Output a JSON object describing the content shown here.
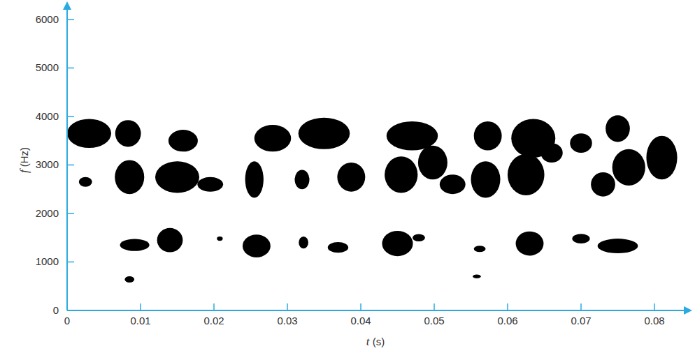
{
  "chart_data": {
    "type": "spectrogram",
    "x_label": "t (s)",
    "y_label": "f (Hz)",
    "color": "#000000",
    "xlim": [
      0,
      0.084
    ],
    "xticks": [
      0,
      0.01,
      0.02,
      0.03,
      0.04,
      0.05,
      0.06,
      0.07,
      0.08
    ],
    "ylim": [
      0,
      6200
    ],
    "yticks": [
      0,
      1000,
      2000,
      3000,
      4000,
      5000,
      6000
    ],
    "blobs": [
      {
        "t": 0.003,
        "f": 3650,
        "dt": 0.006,
        "df": 600
      },
      {
        "t": 0.0083,
        "f": 3650,
        "dt": 0.0035,
        "df": 550
      },
      {
        "t": 0.0158,
        "f": 3500,
        "dt": 0.004,
        "df": 450
      },
      {
        "t": 0.028,
        "f": 3550,
        "dt": 0.005,
        "df": 550
      },
      {
        "t": 0.035,
        "f": 3650,
        "dt": 0.007,
        "df": 650
      },
      {
        "t": 0.047,
        "f": 3600,
        "dt": 0.007,
        "df": 600
      },
      {
        "t": 0.0573,
        "f": 3600,
        "dt": 0.0038,
        "df": 600
      },
      {
        "t": 0.0635,
        "f": 3550,
        "dt": 0.006,
        "df": 800
      },
      {
        "t": 0.07,
        "f": 3450,
        "dt": 0.003,
        "df": 400
      },
      {
        "t": 0.075,
        "f": 3750,
        "dt": 0.0033,
        "df": 550
      },
      {
        "t": 0.081,
        "f": 3150,
        "dt": 0.0042,
        "df": 900
      },
      {
        "t": 0.0025,
        "f": 2650,
        "dt": 0.0018,
        "df": 200
      },
      {
        "t": 0.0085,
        "f": 2750,
        "dt": 0.004,
        "df": 700
      },
      {
        "t": 0.015,
        "f": 2750,
        "dt": 0.006,
        "df": 650
      },
      {
        "t": 0.0195,
        "f": 2600,
        "dt": 0.0035,
        "df": 300
      },
      {
        "t": 0.0255,
        "f": 2700,
        "dt": 0.0025,
        "df": 750
      },
      {
        "t": 0.032,
        "f": 2700,
        "dt": 0.002,
        "df": 400
      },
      {
        "t": 0.0387,
        "f": 2750,
        "dt": 0.0038,
        "df": 600
      },
      {
        "t": 0.0455,
        "f": 2800,
        "dt": 0.0045,
        "df": 750
      },
      {
        "t": 0.0498,
        "f": 3050,
        "dt": 0.004,
        "df": 700
      },
      {
        "t": 0.0525,
        "f": 2600,
        "dt": 0.0035,
        "df": 400
      },
      {
        "t": 0.057,
        "f": 2700,
        "dt": 0.004,
        "df": 750
      },
      {
        "t": 0.0625,
        "f": 2800,
        "dt": 0.005,
        "df": 850
      },
      {
        "t": 0.066,
        "f": 3250,
        "dt": 0.003,
        "df": 400
      },
      {
        "t": 0.073,
        "f": 2600,
        "dt": 0.0033,
        "df": 500
      },
      {
        "t": 0.0765,
        "f": 2950,
        "dt": 0.0045,
        "df": 750
      },
      {
        "t": 0.0092,
        "f": 1350,
        "dt": 0.004,
        "df": 250
      },
      {
        "t": 0.014,
        "f": 1450,
        "dt": 0.0035,
        "df": 500
      },
      {
        "t": 0.0208,
        "f": 1480,
        "dt": 0.0008,
        "df": 90
      },
      {
        "t": 0.0258,
        "f": 1330,
        "dt": 0.0038,
        "df": 470
      },
      {
        "t": 0.0322,
        "f": 1400,
        "dt": 0.0013,
        "df": 250
      },
      {
        "t": 0.0369,
        "f": 1300,
        "dt": 0.0028,
        "df": 220
      },
      {
        "t": 0.045,
        "f": 1380,
        "dt": 0.0042,
        "df": 520
      },
      {
        "t": 0.0479,
        "f": 1500,
        "dt": 0.0017,
        "df": 150
      },
      {
        "t": 0.0562,
        "f": 1270,
        "dt": 0.0016,
        "df": 130
      },
      {
        "t": 0.063,
        "f": 1380,
        "dt": 0.0038,
        "df": 500
      },
      {
        "t": 0.07,
        "f": 1480,
        "dt": 0.0024,
        "df": 200
      },
      {
        "t": 0.075,
        "f": 1330,
        "dt": 0.0055,
        "df": 300
      },
      {
        "t": 0.0085,
        "f": 640,
        "dt": 0.0013,
        "df": 130
      },
      {
        "t": 0.0558,
        "f": 700,
        "dt": 0.0011,
        "df": 80
      }
    ]
  }
}
